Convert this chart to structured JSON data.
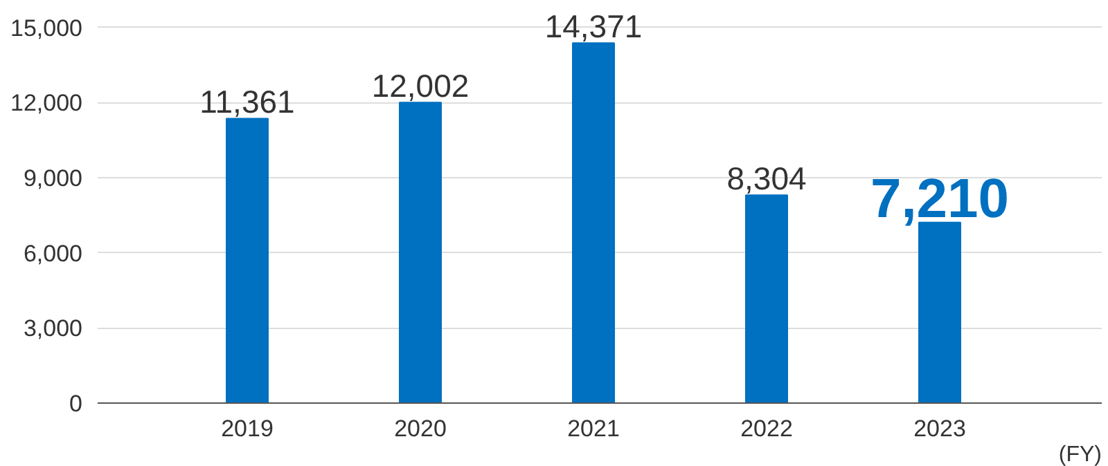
{
  "chart_data": {
    "type": "bar",
    "categories": [
      "2019",
      "2020",
      "2021",
      "2022",
      "2023"
    ],
    "values": [
      11361,
      12002,
      14371,
      8304,
      7210
    ],
    "color": "#0070c0",
    "xlabel": "(FY)",
    "ylim": [
      0,
      15000
    ],
    "yticks": [
      {
        "value": 0,
        "label": "0"
      },
      {
        "value": 3000,
        "label": "3,000"
      },
      {
        "value": 6000,
        "label": "6,000"
      },
      {
        "value": 9000,
        "label": "9,000"
      },
      {
        "value": 12000,
        "label": "12,000"
      },
      {
        "value": 15000,
        "label": "15,000"
      }
    ],
    "grid": "y",
    "value_labels": [
      "11,361",
      "12,002",
      "14,371",
      "8,304",
      "7,210"
    ]
  }
}
